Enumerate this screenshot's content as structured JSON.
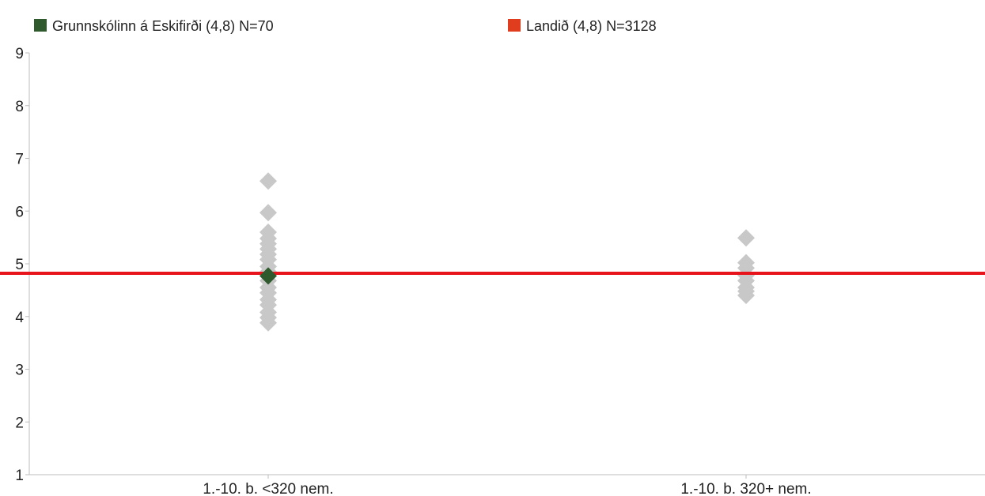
{
  "chart_data": {
    "type": "scatter",
    "title": "",
    "xlabel": "",
    "ylabel": "",
    "categories": [
      "1.-10. b. <320 nem.",
      "1.-10. b. 320+ nem."
    ],
    "ylim": [
      1,
      9
    ],
    "yticks": [
      "1",
      "2",
      "3",
      "4",
      "5",
      "6",
      "7",
      "8",
      "9"
    ],
    "grid": false,
    "legend_position": "top",
    "legend": [
      {
        "label": "Grunnskólinn á Eskifirði (4,8) N=70",
        "color": "#2e5a2e"
      },
      {
        "label": "Landið (4,8) N=3128",
        "color": "#e03c1e"
      }
    ],
    "series": [
      {
        "role": "other-schools",
        "color": "#c8c8c8",
        "points": [
          {
            "x": "1.-10. b. <320 nem.",
            "y": 6.57
          },
          {
            "x": "1.-10. b. <320 nem.",
            "y": 5.97
          },
          {
            "x": "1.-10. b. <320 nem.",
            "y": 5.6
          },
          {
            "x": "1.-10. b. <320 nem.",
            "y": 5.48
          },
          {
            "x": "1.-10. b. <320 nem.",
            "y": 5.38
          },
          {
            "x": "1.-10. b. <320 nem.",
            "y": 5.28
          },
          {
            "x": "1.-10. b. <320 nem.",
            "y": 5.18
          },
          {
            "x": "1.-10. b. <320 nem.",
            "y": 5.08
          },
          {
            "x": "1.-10. b. <320 nem.",
            "y": 4.95
          },
          {
            "x": "1.-10. b. <320 nem.",
            "y": 4.85
          },
          {
            "x": "1.-10. b. <320 nem.",
            "y": 4.68
          },
          {
            "x": "1.-10. b. <320 nem.",
            "y": 4.55
          },
          {
            "x": "1.-10. b. <320 nem.",
            "y": 4.45
          },
          {
            "x": "1.-10. b. <320 nem.",
            "y": 4.32
          },
          {
            "x": "1.-10. b. <320 nem.",
            "y": 4.22
          },
          {
            "x": "1.-10. b. <320 nem.",
            "y": 4.08
          },
          {
            "x": "1.-10. b. <320 nem.",
            "y": 3.98
          },
          {
            "x": "1.-10. b. <320 nem.",
            "y": 3.88
          },
          {
            "x": "1.-10. b. 320+ nem.",
            "y": 5.49
          },
          {
            "x": "1.-10. b. 320+ nem.",
            "y": 5.02
          },
          {
            "x": "1.-10. b. 320+ nem.",
            "y": 4.92
          },
          {
            "x": "1.-10. b. 320+ nem.",
            "y": 4.78
          },
          {
            "x": "1.-10. b. 320+ nem.",
            "y": 4.68
          },
          {
            "x": "1.-10. b. 320+ nem.",
            "y": 4.55
          },
          {
            "x": "1.-10. b. 320+ nem.",
            "y": 4.48
          },
          {
            "x": "1.-10. b. 320+ nem.",
            "y": 4.4
          }
        ]
      },
      {
        "name": "Grunnskólinn á Eskifirði (4,8) N=70",
        "color": "#2e5a2e",
        "points": [
          {
            "x": "1.-10. b. <320 nem.",
            "y": 4.77
          }
        ]
      }
    ],
    "reference_line": {
      "name": "Landið (4,8) N=3128",
      "y": 4.82,
      "color": "#e8141c"
    }
  }
}
